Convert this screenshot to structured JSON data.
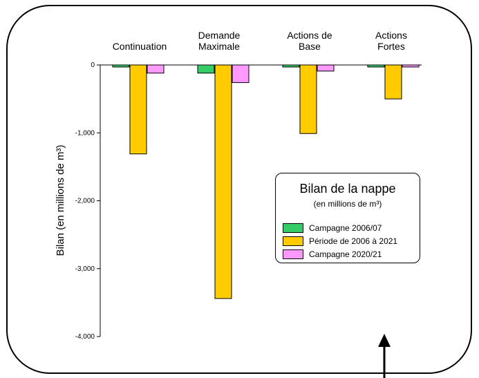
{
  "chart_data": {
    "type": "bar",
    "ylabel": "Bilan (en millions de m³)",
    "ylim": [
      -4000,
      0
    ],
    "yticks": [
      0,
      -1000,
      -2000,
      -3000,
      -4000
    ],
    "ytick_labels": [
      "0",
      "-1,000",
      "-2,000",
      "-3,000",
      "-4,000"
    ],
    "categories": [
      "Continuation",
      "Demande\nMaximale",
      "Actions de\nBase",
      "Actions\nFortes"
    ],
    "series": [
      {
        "name": "Campagne 2006/07",
        "color": "#33cc66",
        "values": [
          -30,
          -120,
          -30,
          -30
        ]
      },
      {
        "name": "Période de 2006 à 2021",
        "color": "#ffcc00",
        "values": [
          -1310,
          -3440,
          -1010,
          -500
        ]
      },
      {
        "name": "Campagne 2020/21",
        "color": "#ff99ff",
        "values": [
          -120,
          -260,
          -90,
          -30
        ]
      }
    ],
    "legend": {
      "title": "Bilan de la nappe",
      "subtitle": "(en millions de m³)",
      "placement": "center-right"
    },
    "grid": false
  }
}
